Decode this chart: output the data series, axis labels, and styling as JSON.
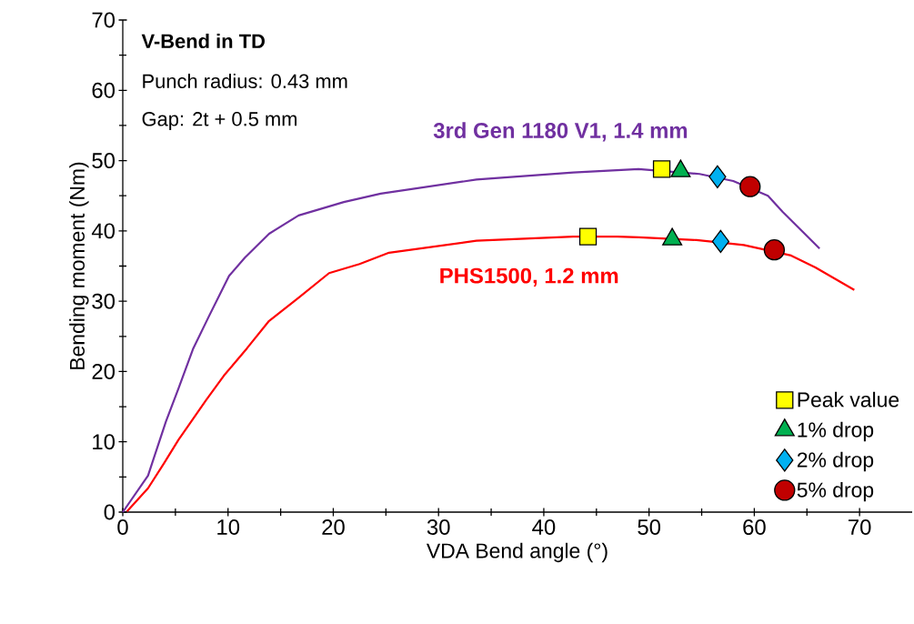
{
  "chart_data": {
    "type": "line",
    "xlabel": "VDA Bend angle (°)",
    "ylabel": "Bending moment (Nm)",
    "xlim": [
      0,
      75
    ],
    "ylim": [
      0,
      70
    ],
    "xticks": [
      0,
      10,
      20,
      30,
      40,
      50,
      60,
      70
    ],
    "yticks": [
      0,
      10,
      20,
      30,
      40,
      50,
      60,
      70
    ],
    "grid": false,
    "legend": "bottom right",
    "annotations": [
      "V-Bend in TD",
      "Punch radius: 0.43 mm",
      "Gap: 2t + 0.5 mm"
    ],
    "series": [
      {
        "name": "3rd Gen 1180 V1, 1.4 mm",
        "color": "#7030a0",
        "marker": "none",
        "x": [
          0,
          2.4,
          4.1,
          5.3,
          6.7,
          8.2,
          10.1,
          11.6,
          13.9,
          16.7,
          21.0,
          24.5,
          33.6,
          42.8,
          49.0,
          54.8,
          58.0,
          61.3,
          62.7,
          66.2
        ],
        "values": [
          0,
          5.2,
          12.9,
          17.6,
          23.3,
          27.9,
          33.6,
          36.2,
          39.6,
          42.2,
          44.1,
          45.3,
          47.3,
          48.3,
          48.8,
          48.1,
          47.1,
          45.0,
          42.7,
          37.5
        ]
      },
      {
        "name": "PHS1500, 1.2 mm",
        "color": "#ff0000",
        "marker": "none",
        "x": [
          0.4,
          2.4,
          3.9,
          5.3,
          6.7,
          7.9,
          9.6,
          11.8,
          13.9,
          16.7,
          19.6,
          22.5,
          25.3,
          33.6,
          42.8,
          47.0,
          49.0,
          54.5,
          59.0,
          63.5,
          65.8,
          69.5
        ],
        "values": [
          0.1,
          3.4,
          6.9,
          10.3,
          13.3,
          15.9,
          19.4,
          23.3,
          27.2,
          30.5,
          34.0,
          35.3,
          36.9,
          38.6,
          39.2,
          39.2,
          39.1,
          38.7,
          38.0,
          36.5,
          34.8,
          31.6
        ]
      },
      {
        "name": "Peak value",
        "type": "scatter",
        "color": "#ffff00",
        "marker": "square",
        "x": [
          51.2,
          44.2
        ],
        "values": [
          48.8,
          39.2
        ]
      },
      {
        "name": "1% drop",
        "type": "scatter",
        "color": "#00b050",
        "marker": "triangle",
        "x": [
          53.0,
          52.2
        ],
        "values": [
          48.5,
          38.8
        ]
      },
      {
        "name": "2% drop",
        "type": "scatter",
        "color": "#00b0f0",
        "marker": "diamond",
        "x": [
          56.5,
          56.8
        ],
        "values": [
          47.7,
          38.5
        ]
      },
      {
        "name": "5% drop",
        "type": "scatter",
        "color": "#c00000",
        "marker": "circle",
        "x": [
          59.6,
          61.9
        ],
        "values": [
          46.3,
          37.3
        ]
      }
    ]
  }
}
